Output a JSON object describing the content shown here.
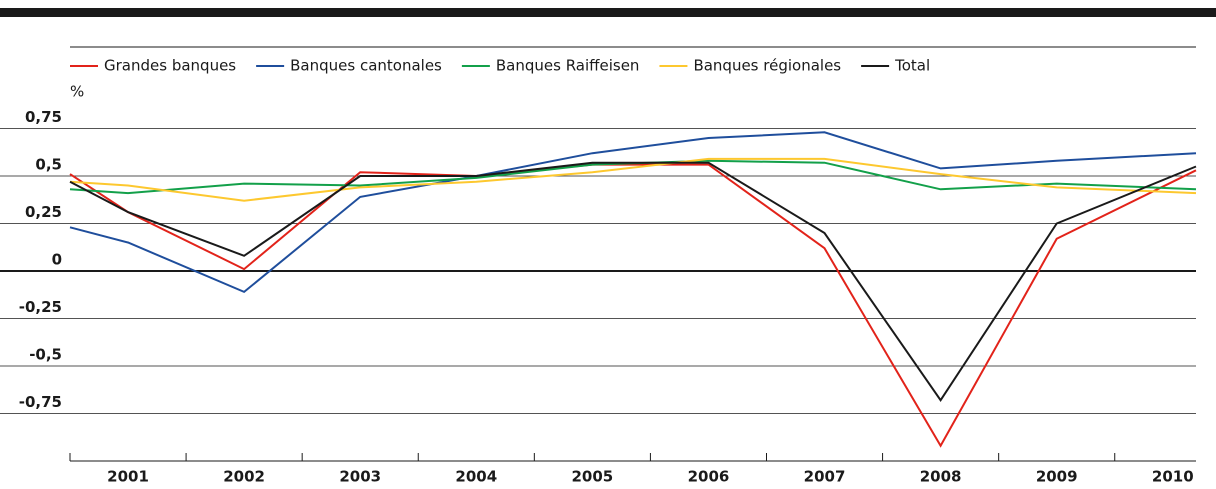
{
  "chart_data": {
    "type": "line",
    "y_unit": "%",
    "x": [
      2000.5,
      2001,
      2002,
      2003,
      2004,
      2005,
      2006,
      2007,
      2008,
      2009,
      2010.2
    ],
    "xlim": [
      2000.5,
      2010.2
    ],
    "xticks": [
      2001,
      2002,
      2003,
      2004,
      2005,
      2006,
      2007,
      2008,
      2009,
      2010
    ],
    "ylim": [
      -1,
      0.9
    ],
    "yticks": [
      {
        "value": 0.75,
        "label": "0,75"
      },
      {
        "value": 0.5,
        "label": "0,5"
      },
      {
        "value": 0.25,
        "label": "0,25"
      },
      0,
      {
        "value": -0.25,
        "label": "-0,25"
      },
      {
        "value": -0.5,
        "label": "-0,5"
      },
      {
        "value": -0.75,
        "label": "-0,75"
      }
    ],
    "grid": true,
    "legend": "top",
    "series": [
      {
        "name": "Grandes banques",
        "color": "#e2231a",
        "values": [
          0.51,
          0.31,
          0.01,
          0.52,
          0.5,
          0.56,
          0.56,
          0.12,
          -0.92,
          0.17,
          0.53
        ]
      },
      {
        "name": "Banques cantonales",
        "color": "#1f4e9c",
        "values": [
          0.23,
          0.15,
          -0.11,
          0.39,
          0.5,
          0.62,
          0.7,
          0.73,
          0.54,
          0.58,
          0.62
        ]
      },
      {
        "name": "Banques Raiffeisen",
        "color": "#13a04a",
        "values": [
          0.43,
          0.41,
          0.46,
          0.45,
          0.49,
          0.56,
          0.58,
          0.57,
          0.43,
          0.46,
          0.43
        ]
      },
      {
        "name": "Banques régionales",
        "color": "#fdc82f",
        "values": [
          0.47,
          0.45,
          0.37,
          0.44,
          0.47,
          0.52,
          0.59,
          0.59,
          0.51,
          0.44,
          0.41
        ]
      },
      {
        "name": "Total",
        "color": "#1a1a1a",
        "values": [
          0.47,
          0.31,
          0.08,
          0.5,
          0.5,
          0.57,
          0.57,
          0.2,
          -0.68,
          0.25,
          0.55
        ]
      }
    ]
  }
}
